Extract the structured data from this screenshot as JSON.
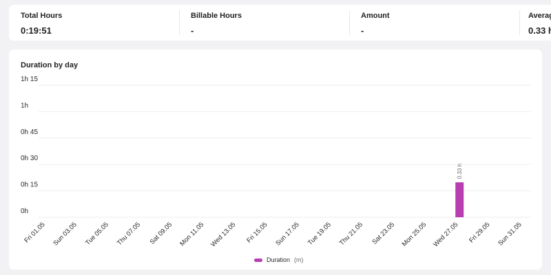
{
  "stats": [
    {
      "label": "Total Hours",
      "value": "0:19:51"
    },
    {
      "label": "Billable Hours",
      "value": "-"
    },
    {
      "label": "Amount",
      "value": "-"
    },
    {
      "label": "Average Daily Hours",
      "value": "0.33 h"
    }
  ],
  "chart_data": {
    "type": "bar",
    "title": "Duration by day",
    "y_tick_labels": [
      "0h",
      "0h 15",
      "0h 30",
      "0h 45",
      "1h",
      "1h 15"
    ],
    "ylim_minutes": [
      0,
      75
    ],
    "categories": [
      "01.05",
      "02.05",
      "03.05",
      "04.05",
      "05.05",
      "06.05",
      "07.05",
      "08.05",
      "09.05",
      "10.05",
      "11.05",
      "12.05",
      "13.05",
      "14.05",
      "15.05",
      "16.05",
      "17.05",
      "18.05",
      "19.05",
      "20.05",
      "21.05",
      "22.05",
      "23.05",
      "24.05",
      "25.05",
      "26.05",
      "27.05",
      "28.05",
      "29.05",
      "30.05",
      "31.05"
    ],
    "x_tick_labels": [
      "Fri 01.05",
      "Sun 03.05",
      "Tue 05.05",
      "Thu 07.05",
      "Sat 09.05",
      "Mon 11.05",
      "Wed 13.05",
      "Fri 15.05",
      "Sun 17.05",
      "Tue 19.05",
      "Thu 21.05",
      "Sat 23.05",
      "Mon 25.05",
      "Wed 27.05",
      "Fri 29.05",
      "Sun 31.05"
    ],
    "series": [
      {
        "name": "Duration",
        "unit": "(m)",
        "color": "#b83db0",
        "values": [
          0,
          0,
          0,
          0,
          0,
          0,
          0,
          0,
          0,
          0,
          0,
          0,
          0,
          0,
          0,
          0,
          0,
          0,
          0,
          0,
          0,
          0,
          0,
          0,
          0,
          0,
          19.85,
          0,
          0,
          0,
          0
        ],
        "data_labels": {
          "26": "0.33 h"
        }
      }
    ],
    "grid": true,
    "legend": "bottom-center"
  }
}
